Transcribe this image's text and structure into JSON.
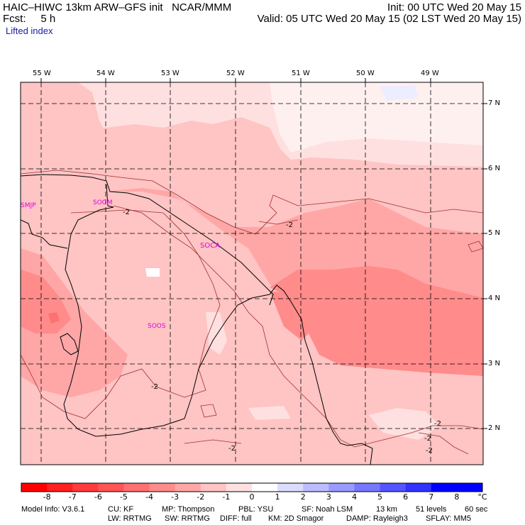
{
  "header": {
    "model": "HAIC–HIWC 13km ARW–GFS init   NCAR/MMM",
    "fcst": "Fcst:     5 h",
    "init": "Init: 00 UTC Wed 20 May 15",
    "valid": "Valid: 05 UTC Wed 20 May 15 (02 LST Wed 20 May 15)",
    "field": "Lifted index"
  },
  "longitudes": [
    "55 W",
    "54 W",
    "53 W",
    "52 W",
    "51 W",
    "50 W",
    "49 W"
  ],
  "latitudes": [
    "7 N",
    "6 N",
    "5 N",
    "4 N",
    "3 N",
    "2 N"
  ],
  "stations": [
    "SMJP",
    "SOGM",
    "SOCA",
    "SOOS"
  ],
  "contour_labels": [
    "-2",
    "-2",
    "-2",
    "-2",
    "-2",
    "-2",
    "-2"
  ],
  "colorbar": {
    "ticks": [
      "-8",
      "-7",
      "-6",
      "-5",
      "-4",
      "-3",
      "-2",
      "-1",
      "0",
      "1",
      "2",
      "3",
      "4",
      "5",
      "6",
      "7",
      "8"
    ],
    "unit": "°C",
    "colors": [
      "#ff0000",
      "#ff2020",
      "#ff3c3c",
      "#ff5555",
      "#ff7070",
      "#ff8b8b",
      "#ffa6a6",
      "#ffc4c4",
      "#ffe0e0",
      "#ffffff",
      "#dcdcff",
      "#bcbcff",
      "#9a9aff",
      "#7777ff",
      "#5555ff",
      "#3333ff",
      "#0000ff"
    ]
  },
  "footer": {
    "line1": [
      "Model Info: V3.6.1",
      "CU: KF",
      "MP: Thompson",
      "PBL: YSU",
      "SF: Noah LSM",
      "13 km",
      "51 levels",
      "60 sec"
    ],
    "line2": [
      "LW: RRTMG",
      "SW: RRTMG",
      "DIFF: full",
      "KM: 2D Smagor",
      "DAMP: Rayleigh3",
      "SFLAY: MM5"
    ]
  }
}
